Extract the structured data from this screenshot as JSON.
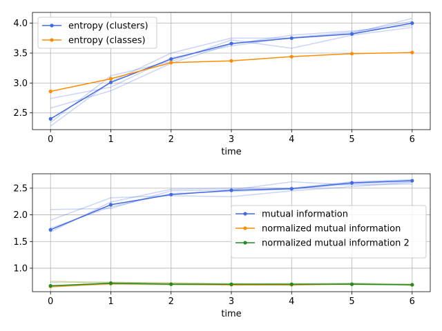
{
  "chart_data": [
    {
      "type": "line",
      "xlabel": "time",
      "ylabel": "",
      "x": [
        0,
        1,
        2,
        3,
        4,
        5,
        6
      ],
      "xlim": [
        -0.3,
        6.3
      ],
      "ylim": [
        2.22,
        4.18
      ],
      "xticks": [
        0,
        1,
        2,
        3,
        4,
        5,
        6
      ],
      "yticks": [
        2.5,
        3.0,
        3.5,
        4.0
      ],
      "ytick_labels": [
        "2.5",
        "3.0",
        "3.5",
        "4.0"
      ],
      "grid": true,
      "legend_position": "top-left",
      "series": [
        {
          "name": "entropy (clusters)",
          "color": "#4169e1",
          "values": [
            2.4,
            3.01,
            3.4,
            3.66,
            3.75,
            3.82,
            4.0
          ]
        },
        {
          "name": "entropy (classes)",
          "color": "#ff8c00",
          "values": [
            2.86,
            3.07,
            3.34,
            3.37,
            3.44,
            3.49,
            3.51
          ]
        }
      ],
      "faint_series": [
        {
          "color": "#4169e1",
          "values": [
            2.28,
            3.02,
            3.5,
            3.75,
            3.75,
            3.83,
            4.08
          ]
        },
        {
          "color": "#4169e1",
          "values": [
            2.58,
            2.87,
            3.33,
            3.65,
            3.8,
            3.87,
            3.96
          ]
        },
        {
          "color": "#4169e1",
          "values": [
            2.34,
            3.12,
            3.36,
            3.72,
            3.58,
            3.8,
            3.93
          ]
        },
        {
          "color": "#4169e1",
          "values": [
            2.74,
            2.93,
            3.42,
            3.62,
            3.76,
            3.85,
            4.03
          ]
        }
      ]
    },
    {
      "type": "line",
      "xlabel": "time",
      "ylabel": "",
      "x": [
        0,
        1,
        2,
        3,
        4,
        5,
        6
      ],
      "xlim": [
        -0.3,
        6.3
      ],
      "ylim": [
        0.56,
        2.77
      ],
      "xticks": [
        0,
        1,
        2,
        3,
        4,
        5,
        6
      ],
      "yticks": [
        1.0,
        1.5,
        2.0,
        2.5
      ],
      "ytick_labels": [
        "1.0",
        "1.5",
        "2.0",
        "2.5"
      ],
      "grid": true,
      "legend_position": "center-right",
      "series": [
        {
          "name": "mutual information",
          "color": "#4169e1",
          "values": [
            1.72,
            2.19,
            2.38,
            2.46,
            2.49,
            2.6,
            2.64
          ]
        },
        {
          "name": "normalized mutual information",
          "color": "#ff8c00",
          "values": [
            0.66,
            0.71,
            0.7,
            0.69,
            0.69,
            0.7,
            0.69
          ]
        },
        {
          "name": "normalized mutual information 2",
          "color": "#228b22",
          "values": [
            0.67,
            0.72,
            0.7,
            0.7,
            0.7,
            0.7,
            0.69
          ]
        }
      ],
      "faint_series": [
        {
          "color": "#4169e1",
          "values": [
            2.1,
            2.12,
            2.45,
            2.47,
            2.62,
            2.56,
            2.58
          ]
        },
        {
          "color": "#4169e1",
          "values": [
            1.9,
            2.32,
            2.36,
            2.34,
            2.45,
            2.53,
            2.61
          ]
        },
        {
          "color": "#4169e1",
          "values": [
            1.68,
            2.24,
            2.48,
            2.5,
            2.5,
            2.62,
            2.66
          ]
        },
        {
          "color": "#4169e1",
          "values": [
            1.75,
            2.15,
            2.4,
            2.44,
            2.48,
            2.58,
            2.62
          ]
        },
        {
          "color": "#ff8c00",
          "values": [
            0.76,
            0.72,
            0.71,
            0.68,
            0.69,
            0.71,
            0.68
          ]
        },
        {
          "color": "#ff8c00",
          "values": [
            0.64,
            0.73,
            0.73,
            0.7,
            0.7,
            0.69,
            0.7
          ]
        },
        {
          "color": "#228b22",
          "values": [
            0.74,
            0.74,
            0.72,
            0.71,
            0.71,
            0.72,
            0.7
          ]
        },
        {
          "color": "#228b22",
          "values": [
            0.65,
            0.7,
            0.69,
            0.69,
            0.68,
            0.71,
            0.69
          ]
        }
      ]
    }
  ]
}
